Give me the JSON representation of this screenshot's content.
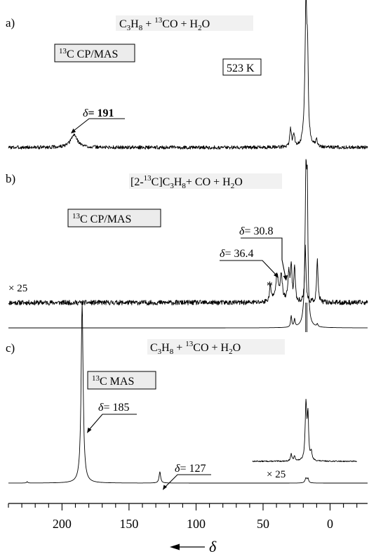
{
  "chart_data": {
    "type": "line",
    "xlabel": "δ",
    "x_ticks": [
      200,
      150,
      100,
      50,
      0
    ],
    "x_minor_step": 10,
    "x_reversed": true,
    "xlim": [
      240,
      -28
    ],
    "panels": [
      {
        "id": "a",
        "panel_label": "a)",
        "title": {
          "pre": "C",
          "s1": "3",
          "m1": "H",
          "s2": "8",
          "m2": " + ",
          "sup": "13",
          "m3": "CO + H",
          "s3": "2",
          "m4": "O"
        },
        "method": {
          "sup": "13",
          "rest": "C CP/MAS"
        },
        "temperature": "523 K",
        "annotations": [
          {
            "pre": "δ",
            "val": "= 191",
            "bold": true
          }
        ],
        "traces": [
          {
            "name": "",
            "noise": 5,
            "seed": 3,
            "peaks": [
              {
                "x": 191,
                "height": 18,
                "width": 3
              },
              {
                "x": 29.5,
                "height": 26,
                "width": 0.7
              },
              {
                "x": 27,
                "height": 18,
                "width": 0.7
              },
              {
                "x": 18,
                "height": 198,
                "width": 0.9
              },
              {
                "x": 16.8,
                "height": 95,
                "width": 0.6
              },
              {
                "x": 10,
                "height": 10,
                "width": 0.6
              }
            ]
          }
        ]
      },
      {
        "id": "b",
        "panel_label": "b)",
        "title": {
          "pre": "[2-",
          "sup": "13",
          "mid": "C]C",
          "s1": "3",
          "m1": "H",
          "s2": "8",
          "m2": "+ CO + H",
          "s3": "2",
          "m3": "O"
        },
        "method": {
          "sup": "13",
          "rest": "C CP/MAS"
        },
        "scale_label": "× 25",
        "asterisk": "*",
        "annotations": [
          {
            "pre": "δ",
            "val": "= 30.8"
          },
          {
            "pre": "δ",
            "val": "= 36.4"
          }
        ],
        "traces": [
          {
            "name": "× 25",
            "noise": 7,
            "seed": 11,
            "peaks": [
              {
                "x": 44.5,
                "height": 22,
                "width": 0.8
              },
              {
                "x": 39.5,
                "height": 38,
                "width": 1.2
              },
              {
                "x": 36.4,
                "height": 35,
                "width": 1.0
              },
              {
                "x": 30.8,
                "height": 40,
                "width": 0.8
              },
              {
                "x": 29,
                "height": 50,
                "width": 0.6
              },
              {
                "x": 26.5,
                "height": 50,
                "width": 0.6
              },
              {
                "x": 18.5,
                "height": 80,
                "width": 0.6
              },
              {
                "x": 9.5,
                "height": 62,
                "width": 0.6
              }
            ],
            "clip": [
              {
                "x": 18.2,
                "to": 473
              },
              {
                "x": 17.2,
                "to": 473
              }
            ]
          },
          {
            "name": "",
            "noise": 0,
            "seed": 5,
            "peaks": [
              {
                "x": 29,
                "height": 16,
                "width": 0.5
              },
              {
                "x": 26.5,
                "height": 11,
                "width": 0.5
              },
              {
                "x": 18,
                "height": 210,
                "width": 0.8
              },
              {
                "x": 17,
                "height": 150,
                "width": 0.5
              },
              {
                "x": 9.5,
                "height": 4,
                "width": 0.5
              }
            ]
          }
        ]
      },
      {
        "id": "c",
        "panel_label": "c)",
        "title": {
          "pre": "C",
          "s1": "3",
          "m1": "H",
          "s2": "8",
          "m2": " + ",
          "sup": "13",
          "m3": "CO + H",
          "s3": "2",
          "m4": "O"
        },
        "method": {
          "sup": "13",
          "rest": "C MAS"
        },
        "scale_label": "× 25",
        "annotations": [
          {
            "pre": "δ",
            "val": "= 185"
          },
          {
            "pre": "δ",
            "val": "= 127"
          }
        ],
        "traces": [
          {
            "name": "",
            "noise": 0,
            "seed": 7,
            "peaks": [
              {
                "x": 226,
                "height": 2,
                "width": 0.5
              },
              {
                "x": 185,
                "height": 255,
                "width": 0.9
              },
              {
                "x": 127,
                "height": 16,
                "width": 0.7
              },
              {
                "x": 18,
                "height": 7,
                "width": 0.8
              },
              {
                "x": 16.5,
                "height": 6,
                "width": 0.6
              }
            ]
          },
          {
            "name": "× 25",
            "noise": 1.6,
            "seed": 13,
            "xrange": [
              58,
              -20
            ],
            "peaks": [
              {
                "x": 29,
                "height": 10,
                "width": 0.6
              },
              {
                "x": 26.5,
                "height": 7,
                "width": 0.6
              },
              {
                "x": 18,
                "height": 80,
                "width": 0.7
              },
              {
                "x": 16.5,
                "height": 60,
                "width": 0.6
              },
              {
                "x": 14,
                "height": 12,
                "width": 0.6
              }
            ]
          }
        ]
      }
    ]
  }
}
